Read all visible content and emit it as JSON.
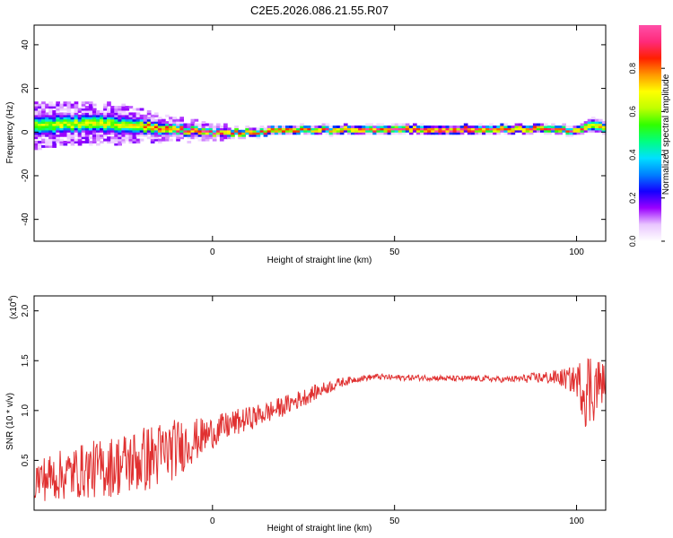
{
  "figure_title": "C2E5.2026.086.21.55.R07",
  "chart_data": [
    {
      "type": "heatmap",
      "xlabel": "Height of straight line (km)",
      "ylabel": "Frequency (Hz)",
      "xlim": [
        -49,
        108
      ],
      "ylim": [
        -50,
        49
      ],
      "xticks": [
        0,
        50,
        100
      ],
      "yticks": [
        -40,
        -20,
        0,
        20,
        40
      ],
      "grid": false,
      "colorbar": {
        "label": "Normalized spectral amplitude",
        "range": [
          0,
          1
        ],
        "ticks": [
          "0.0",
          "0.2",
          "0.4",
          "0.6",
          "0.8"
        ],
        "colors": [
          "#ffffff",
          "#e9c6ff",
          "#9b00ff",
          "#1400ff",
          "#0080ff",
          "#00e0ff",
          "#00ff80",
          "#30ff00",
          "#c0ff00",
          "#ffff00",
          "#ff9900",
          "#ff2000",
          "#ff2a7a",
          "#ff4fa8"
        ]
      },
      "ridge": {
        "x": [
          -49,
          -40,
          -30,
          -22,
          -15,
          -8,
          0,
          10,
          20,
          30,
          40,
          50,
          60,
          70,
          80,
          90,
          100,
          104,
          108
        ],
        "center_hz": [
          3,
          4,
          4,
          3,
          2,
          1,
          0,
          0,
          1,
          1,
          1.5,
          1.5,
          1.5,
          1.5,
          1.5,
          1.5,
          1,
          3,
          2
        ],
        "width_hz": [
          9,
          8,
          8,
          7,
          5,
          4,
          3,
          3,
          3,
          3,
          3,
          3,
          3,
          3,
          3,
          3,
          3,
          5,
          4
        ],
        "peak_amp": [
          0.6,
          0.65,
          0.65,
          0.7,
          0.85,
          0.9,
          0.9,
          0.85,
          0.85,
          0.8,
          0.9,
          0.95,
          0.95,
          0.95,
          0.9,
          0.9,
          0.85,
          0.7,
          0.75
        ]
      }
    },
    {
      "type": "line",
      "xlabel": "Height of straight line (km)",
      "ylabel": "SNR (10 * v/v)",
      "y_multiplier": "(x10",
      "y_multiplier_exp": "4",
      "y_multiplier_close": ")",
      "xlim": [
        -49,
        108
      ],
      "ylim": [
        0,
        2.15
      ],
      "xticks": [
        0,
        50,
        100
      ],
      "yticks": [
        "0.5",
        "1.0",
        "1.5",
        "2.0"
      ],
      "grid": false,
      "series": [
        {
          "color": "#e03030",
          "x": [
            -49,
            -45,
            -40,
            -35,
            -30,
            -25,
            -20,
            -15,
            -10,
            -5,
            0,
            5,
            10,
            15,
            20,
            25,
            30,
            35,
            40,
            45,
            50,
            55,
            60,
            65,
            70,
            75,
            80,
            85,
            90,
            95,
            100,
            103,
            105,
            108
          ],
          "y": [
            0.3,
            0.33,
            0.36,
            0.4,
            0.42,
            0.46,
            0.5,
            0.55,
            0.62,
            0.7,
            0.78,
            0.86,
            0.92,
            0.98,
            1.05,
            1.13,
            1.21,
            1.28,
            1.32,
            1.34,
            1.33,
            1.33,
            1.33,
            1.32,
            1.32,
            1.32,
            1.31,
            1.32,
            1.33,
            1.33,
            1.3,
            1.2,
            1.25,
            1.3
          ],
          "spread": [
            0.22,
            0.24,
            0.26,
            0.28,
            0.3,
            0.32,
            0.34,
            0.34,
            0.3,
            0.22,
            0.16,
            0.14,
            0.12,
            0.11,
            0.1,
            0.09,
            0.07,
            0.05,
            0.03,
            0.03,
            0.03,
            0.03,
            0.03,
            0.03,
            0.03,
            0.03,
            0.03,
            0.04,
            0.06,
            0.08,
            0.15,
            0.45,
            0.35,
            0.15
          ]
        }
      ]
    }
  ]
}
